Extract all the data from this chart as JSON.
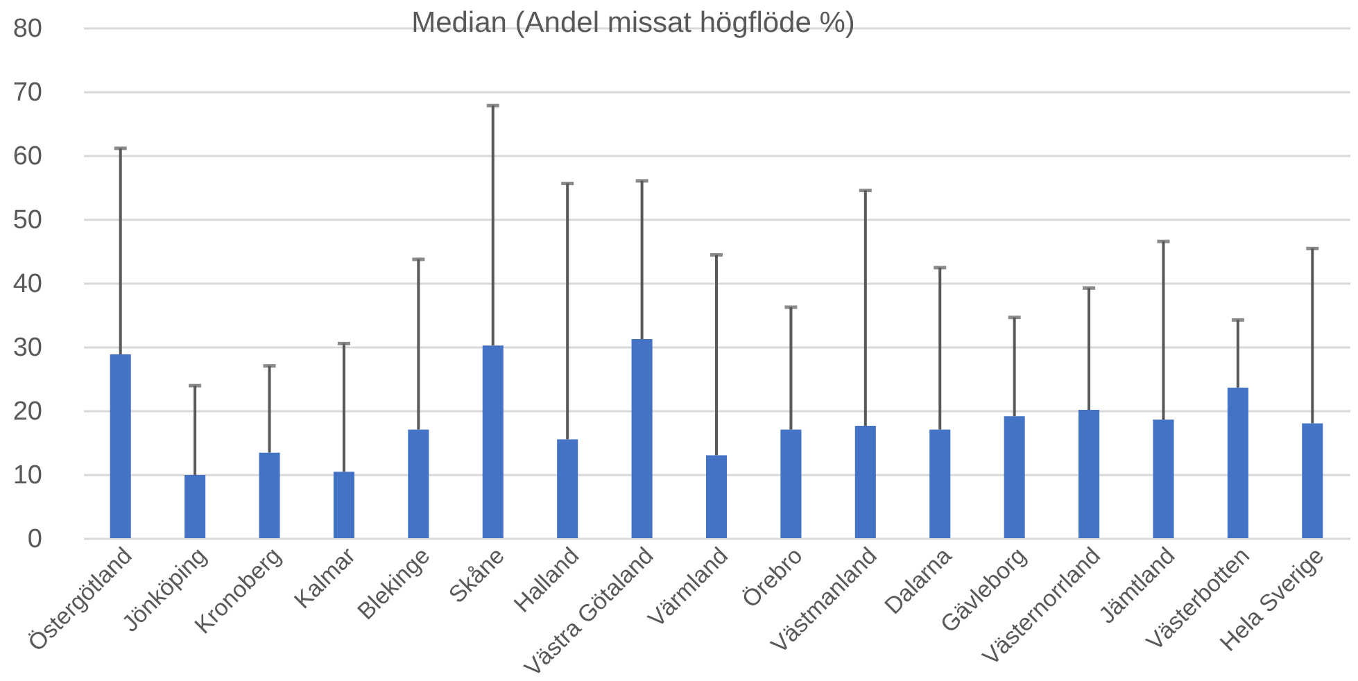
{
  "chart_data": {
    "type": "bar",
    "title": "Median  (Andel missat högflöde %)",
    "categories": [
      "Östergötland",
      "Jönköping",
      "Kronoberg",
      "Kalmar",
      "Blekinge",
      "Skåne",
      "Halland",
      "Västra Götaland",
      "Värmland",
      "Örebro",
      "Västmanland",
      "Dalarna",
      "Gävleborg",
      "Västernorrland",
      "Jämtland",
      "Västerbotten",
      "Hela Sverige"
    ],
    "values": [
      28.8,
      9.9,
      13.4,
      10.4,
      17.0,
      30.2,
      15.5,
      31.2,
      13.0,
      17.0,
      17.6,
      17.0,
      19.1,
      20.1,
      18.6,
      23.6,
      18.0
    ],
    "errors": [
      [
        28.8,
        61.1
      ],
      [
        9.9,
        23.9
      ],
      [
        13.4,
        27.0
      ],
      [
        10.4,
        30.5
      ],
      [
        17.0,
        43.7
      ],
      [
        30.2,
        67.8
      ],
      [
        15.5,
        55.6
      ],
      [
        31.2,
        56.0
      ],
      [
        13.0,
        44.4
      ],
      [
        17.0,
        36.2
      ],
      [
        17.6,
        54.5
      ],
      [
        17.0,
        42.4
      ],
      [
        19.1,
        34.6
      ],
      [
        20.1,
        39.2
      ],
      [
        18.6,
        46.5
      ],
      [
        23.6,
        34.2
      ],
      [
        18.0,
        45.4
      ]
    ],
    "color": "#4472c4",
    "ylim": [
      0,
      80
    ],
    "yticks": [
      0,
      10,
      20,
      30,
      40,
      50,
      60,
      70,
      80
    ],
    "grid": true
  }
}
